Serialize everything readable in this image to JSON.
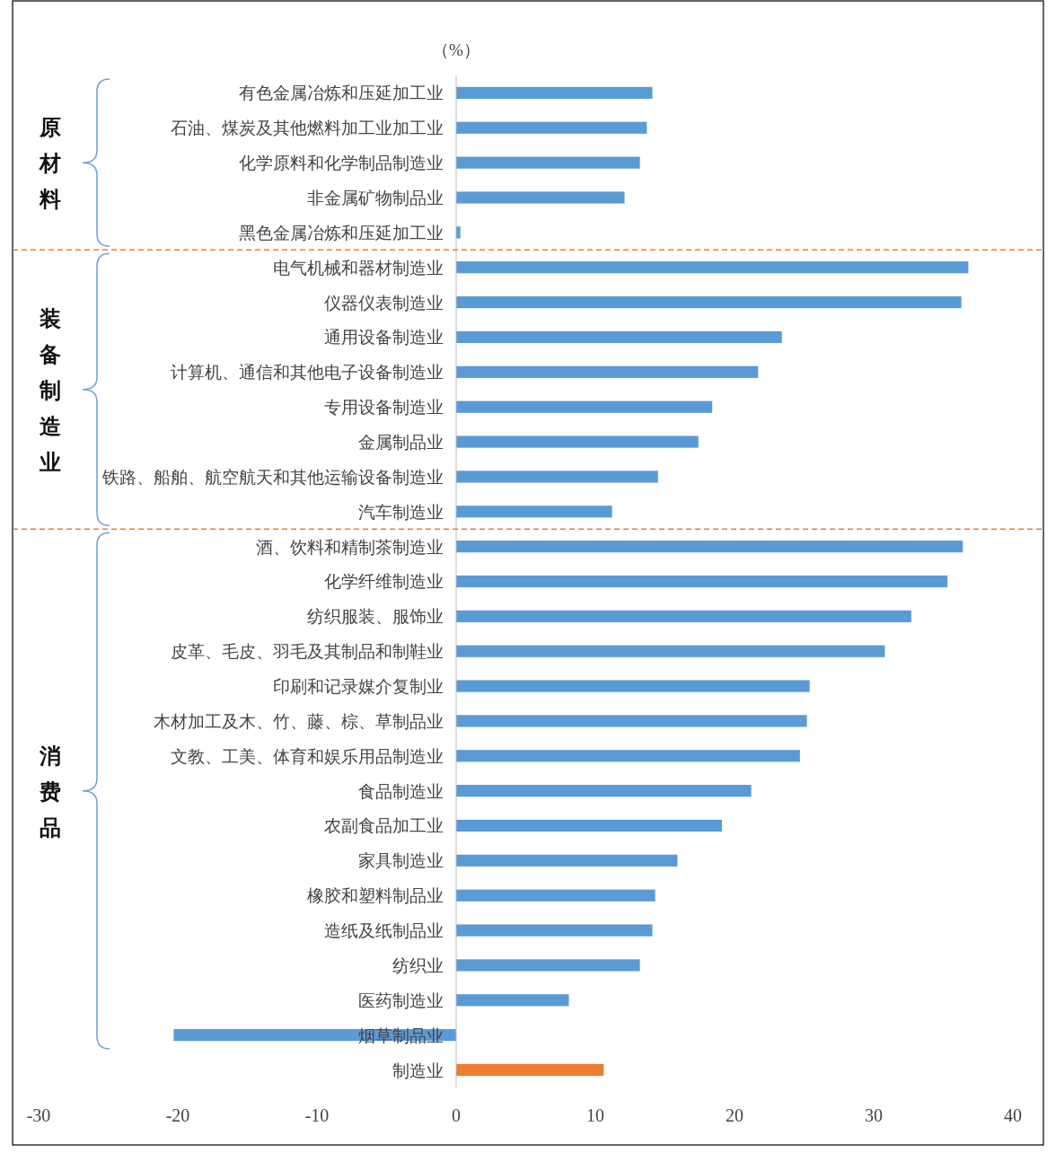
{
  "chart_data": {
    "type": "bar",
    "orientation": "horizontal",
    "xlabel": "（%）",
    "categories": [
      "有色金属冶炼和压延加工业",
      "石油、煤炭及其他燃料加工业加工业",
      "化学原料和化学制品制造业",
      "非金属矿物制品业",
      "黑色金属冶炼和压延加工业",
      "电气机械和器材制造业",
      "仪器仪表制造业",
      "通用设备制造业",
      "计算机、通信和其他电子设备制造业",
      "专用设备制造业",
      "金属制品业",
      "铁路、船舶、航空航天和其他运输设备制造业",
      "汽车制造业",
      "酒、饮料和精制茶制造业",
      "化学纤维制造业",
      "纺织服装、服饰业",
      "皮革、毛皮、羽毛及其制品和制鞋业",
      "印刷和记录媒介复制业",
      "木材加工及木、竹、藤、棕、草制品业",
      "文教、工美、体育和娱乐用品制造业",
      "食品制造业",
      "农副食品加工业",
      "家具制造业",
      "橡胶和塑料制品业",
      "造纸及纸制品业",
      "纺织业",
      "医药制造业",
      "烟草制品业",
      "制造业"
    ],
    "values": [
      14.1,
      13.7,
      13.2,
      12.1,
      0.3,
      36.8,
      36.3,
      23.4,
      21.7,
      18.4,
      17.4,
      14.5,
      11.2,
      36.4,
      35.3,
      32.7,
      30.8,
      25.4,
      25.2,
      24.7,
      21.2,
      19.1,
      15.9,
      14.3,
      14.1,
      13.2,
      8.1,
      -20.3,
      10.6
    ],
    "colors": [
      "#5b9bd5",
      "#5b9bd5",
      "#5b9bd5",
      "#5b9bd5",
      "#5b9bd5",
      "#5b9bd5",
      "#5b9bd5",
      "#5b9bd5",
      "#5b9bd5",
      "#5b9bd5",
      "#5b9bd5",
      "#5b9bd5",
      "#5b9bd5",
      "#5b9bd5",
      "#5b9bd5",
      "#5b9bd5",
      "#5b9bd5",
      "#5b9bd5",
      "#5b9bd5",
      "#5b9bd5",
      "#5b9bd5",
      "#5b9bd5",
      "#5b9bd5",
      "#5b9bd5",
      "#5b9bd5",
      "#5b9bd5",
      "#5b9bd5",
      "#5b9bd5",
      "#ed7d31"
    ],
    "xlim": [
      -30,
      40
    ],
    "xticks": [
      -30,
      -20,
      -10,
      0,
      10,
      20,
      30,
      40
    ],
    "annotations": [
      "原材料",
      "装备制造业",
      "消费品"
    ]
  }
}
